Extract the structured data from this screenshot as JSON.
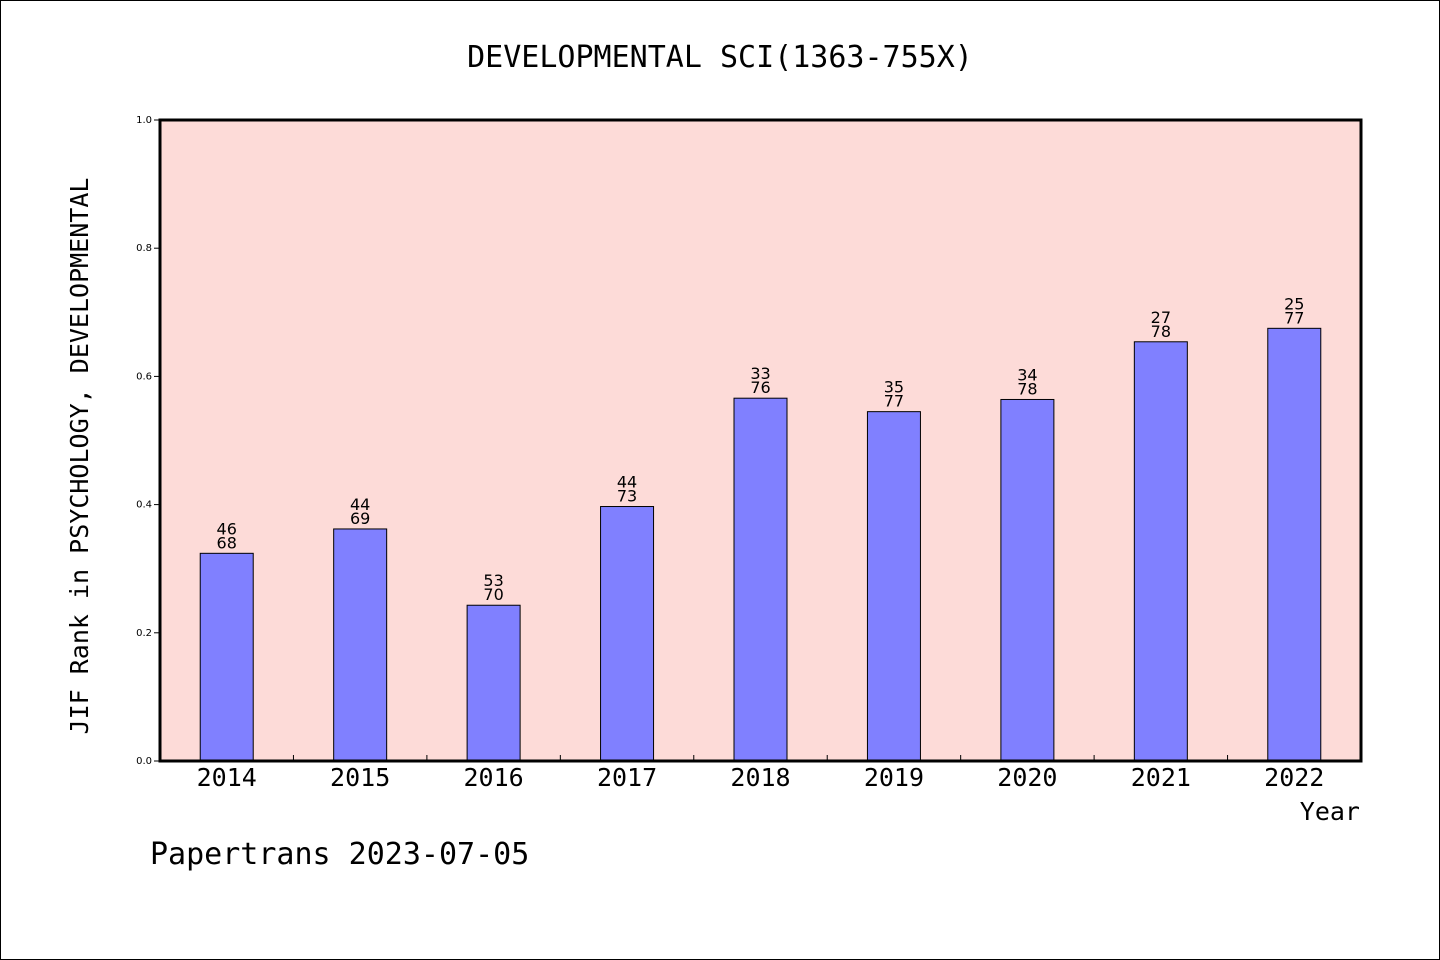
{
  "chart_data": {
    "type": "bar",
    "title": "DEVELOPMENTAL SCI(1363-755X)",
    "xlabel": "Year",
    "ylabel": "JIF Rank in PSYCHOLOGY, DEVELOPMENTAL",
    "ylim": [
      0,
      1
    ],
    "yticks": [
      "0.0",
      "0.2",
      "0.4",
      "0.6",
      "0.8",
      "1.0"
    ],
    "categories": [
      "2014",
      "2015",
      "2016",
      "2017",
      "2018",
      "2019",
      "2020",
      "2021",
      "2022"
    ],
    "values": [
      0.324,
      0.362,
      0.243,
      0.397,
      0.566,
      0.545,
      0.564,
      0.654,
      0.675
    ],
    "rank": [
      "46",
      "44",
      "53",
      "44",
      "33",
      "35",
      "34",
      "27",
      "25"
    ],
    "total": [
      "68",
      "69",
      "70",
      "73",
      "76",
      "77",
      "78",
      "78",
      "77"
    ],
    "grid": false,
    "colors": {
      "plot_bg": "#fddbd8",
      "bar": "#8080ff"
    }
  },
  "footer": "Papertrans 2023-07-05"
}
